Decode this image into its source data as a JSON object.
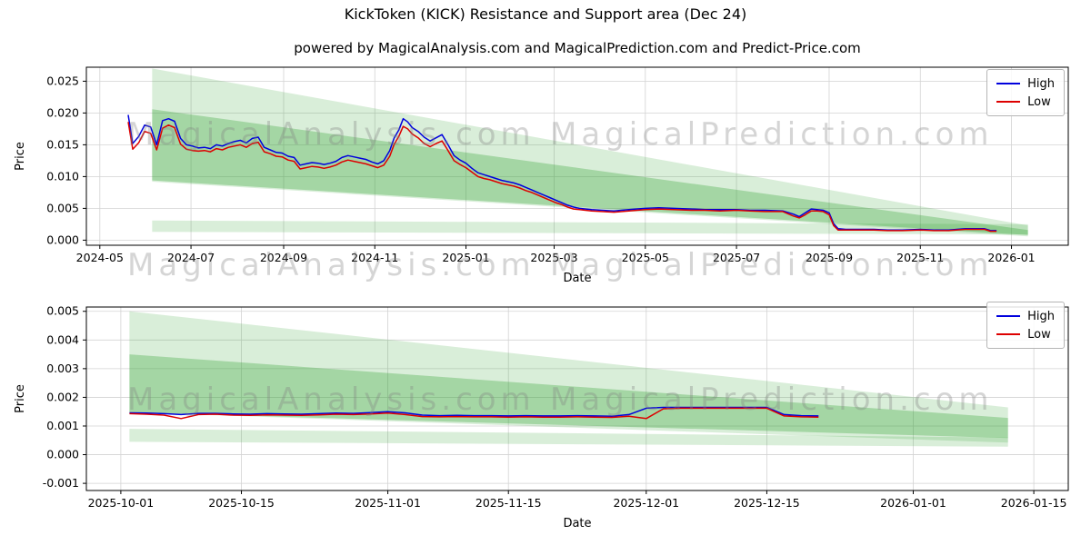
{
  "page": {
    "title": "KickToken (KICK) Resistance and Support area (Dec 24)",
    "subtitle": "powered by MagicalAnalysis.com and MagicalPrediction.com and Predict-Price.com"
  },
  "legend": {
    "high": "High",
    "low": "Low"
  },
  "watermarks": {
    "left": "MagicalAnalysis.com",
    "right": "MagicalPrediction.com"
  },
  "colors": {
    "high": "#0000dd",
    "low": "#dd0000",
    "band_green": "#2ca02c",
    "grid": "#d3d3d3",
    "axis": "#000000",
    "watermark": "#808080"
  },
  "chart_data": [
    {
      "type": "line",
      "title": "",
      "xlabel": "Date",
      "ylabel": "Price",
      "x_range": [
        "2024-04-22",
        "2026-02-08"
      ],
      "ylim": [
        -0.0008,
        0.0272
      ],
      "x_ticks": [
        {
          "date": "2024-05-01",
          "label": "2024-05"
        },
        {
          "date": "2024-07-01",
          "label": "2024-07"
        },
        {
          "date": "2024-09-01",
          "label": "2024-09"
        },
        {
          "date": "2024-11-01",
          "label": "2024-11"
        },
        {
          "date": "2025-01-01",
          "label": "2025-01"
        },
        {
          "date": "2025-03-01",
          "label": "2025-03"
        },
        {
          "date": "2025-05-01",
          "label": "2025-05"
        },
        {
          "date": "2025-07-01",
          "label": "2025-07"
        },
        {
          "date": "2025-09-01",
          "label": "2025-09"
        },
        {
          "date": "2025-11-01",
          "label": "2025-11"
        },
        {
          "date": "2026-01-01",
          "label": "2026-01"
        }
      ],
      "y_ticks": [
        0.0,
        0.005,
        0.01,
        0.015,
        0.02,
        0.025
      ],
      "series": [
        "High",
        "Low"
      ],
      "points": [
        [
          "2024-05-20",
          0.0197,
          0.0186
        ],
        [
          "2024-05-23",
          0.0152,
          0.0143
        ],
        [
          "2024-05-27",
          0.0163,
          0.0153
        ],
        [
          "2024-05-31",
          0.0181,
          0.0171
        ],
        [
          "2024-06-04",
          0.0178,
          0.0168
        ],
        [
          "2024-06-08",
          0.015,
          0.0142
        ],
        [
          "2024-06-12",
          0.0188,
          0.0176
        ],
        [
          "2024-06-16",
          0.0191,
          0.0181
        ],
        [
          "2024-06-20",
          0.0187,
          0.0177
        ],
        [
          "2024-06-24",
          0.016,
          0.0151
        ],
        [
          "2024-06-28",
          0.015,
          0.0143
        ],
        [
          "2024-07-02",
          0.0148,
          0.0141
        ],
        [
          "2024-07-06",
          0.0145,
          0.014
        ],
        [
          "2024-07-10",
          0.0146,
          0.0141
        ],
        [
          "2024-07-14",
          0.0144,
          0.0139
        ],
        [
          "2024-07-18",
          0.015,
          0.0144
        ],
        [
          "2024-07-22",
          0.0148,
          0.0142
        ],
        [
          "2024-07-26",
          0.0152,
          0.0146
        ],
        [
          "2024-07-30",
          0.0155,
          0.0148
        ],
        [
          "2024-08-03",
          0.0157,
          0.015
        ],
        [
          "2024-08-07",
          0.0153,
          0.0146
        ],
        [
          "2024-08-11",
          0.016,
          0.0152
        ],
        [
          "2024-08-15",
          0.0162,
          0.0154
        ],
        [
          "2024-08-19",
          0.0146,
          0.0139
        ],
        [
          "2024-08-23",
          0.0142,
          0.0136
        ],
        [
          "2024-08-27",
          0.0138,
          0.0132
        ],
        [
          "2024-08-31",
          0.0137,
          0.0131
        ],
        [
          "2024-09-04",
          0.0132,
          0.0126
        ],
        [
          "2024-09-08",
          0.013,
          0.0124
        ],
        [
          "2024-09-12",
          0.0118,
          0.0112
        ],
        [
          "2024-09-16",
          0.012,
          0.0114
        ],
        [
          "2024-09-20",
          0.0122,
          0.0116
        ],
        [
          "2024-09-24",
          0.0121,
          0.0115
        ],
        [
          "2024-09-28",
          0.0119,
          0.0113
        ],
        [
          "2024-10-02",
          0.0121,
          0.0115
        ],
        [
          "2024-10-06",
          0.0124,
          0.0118
        ],
        [
          "2024-10-10",
          0.013,
          0.0123
        ],
        [
          "2024-10-14",
          0.0133,
          0.0126
        ],
        [
          "2024-10-18",
          0.0131,
          0.0124
        ],
        [
          "2024-10-22",
          0.0129,
          0.0122
        ],
        [
          "2024-10-26",
          0.0127,
          0.012
        ],
        [
          "2024-10-30",
          0.0123,
          0.0117
        ],
        [
          "2024-11-03",
          0.012,
          0.0114
        ],
        [
          "2024-11-07",
          0.0125,
          0.0118
        ],
        [
          "2024-11-11",
          0.0141,
          0.0132
        ],
        [
          "2024-11-14",
          0.0161,
          0.0151
        ],
        [
          "2024-11-17",
          0.0173,
          0.0163
        ],
        [
          "2024-11-20",
          0.0191,
          0.0179
        ],
        [
          "2024-11-23",
          0.0186,
          0.0175
        ],
        [
          "2024-11-26",
          0.0177,
          0.0167
        ],
        [
          "2024-11-30",
          0.0171,
          0.0161
        ],
        [
          "2024-12-04",
          0.0162,
          0.0152
        ],
        [
          "2024-12-08",
          0.0156,
          0.0147
        ],
        [
          "2024-12-12",
          0.0161,
          0.0152
        ],
        [
          "2024-12-16",
          0.0166,
          0.0156
        ],
        [
          "2024-12-20",
          0.015,
          0.0141
        ],
        [
          "2024-12-24",
          0.0133,
          0.0125
        ],
        [
          "2024-12-28",
          0.0126,
          0.0119
        ],
        [
          "2025-01-01",
          0.0121,
          0.0114
        ],
        [
          "2025-01-05",
          0.0113,
          0.0107
        ],
        [
          "2025-01-09",
          0.0106,
          0.01
        ],
        [
          "2025-01-13",
          0.0103,
          0.0097
        ],
        [
          "2025-01-17",
          0.01,
          0.0095
        ],
        [
          "2025-01-21",
          0.0097,
          0.0092
        ],
        [
          "2025-01-25",
          0.0094,
          0.0089
        ],
        [
          "2025-01-29",
          0.0092,
          0.0087
        ],
        [
          "2025-02-02",
          0.009,
          0.0085
        ],
        [
          "2025-02-06",
          0.0087,
          0.0082
        ],
        [
          "2025-02-10",
          0.0083,
          0.0078
        ],
        [
          "2025-02-14",
          0.0079,
          0.0075
        ],
        [
          "2025-02-18",
          0.0075,
          0.0071
        ],
        [
          "2025-02-22",
          0.0071,
          0.0067
        ],
        [
          "2025-02-26",
          0.0067,
          0.0063
        ],
        [
          "2025-03-02",
          0.0063,
          0.0059
        ],
        [
          "2025-03-06",
          0.0059,
          0.0056
        ],
        [
          "2025-03-10",
          0.0055,
          0.0052
        ],
        [
          "2025-03-14",
          0.0052,
          0.0049
        ],
        [
          "2025-03-18",
          0.005,
          0.0048
        ],
        [
          "2025-03-22",
          0.0049,
          0.0047
        ],
        [
          "2025-03-26",
          0.0048,
          0.0046
        ],
        [
          "2025-04-02",
          0.0047,
          0.0045
        ],
        [
          "2025-04-10",
          0.0046,
          0.0044
        ],
        [
          "2025-04-20",
          0.0048,
          0.0046
        ],
        [
          "2025-05-01",
          0.005,
          0.0048
        ],
        [
          "2025-05-10",
          0.0051,
          0.0049
        ],
        [
          "2025-05-20",
          0.005,
          0.0048
        ],
        [
          "2025-06-01",
          0.0049,
          0.0047
        ],
        [
          "2025-06-10",
          0.0048,
          0.0047
        ],
        [
          "2025-06-20",
          0.0048,
          0.0046
        ],
        [
          "2025-07-01",
          0.0048,
          0.0047
        ],
        [
          "2025-07-10",
          0.0047,
          0.0046
        ],
        [
          "2025-07-20",
          0.0047,
          0.0045
        ],
        [
          "2025-08-01",
          0.0046,
          0.0045
        ],
        [
          "2025-08-08",
          0.0041,
          0.0038
        ],
        [
          "2025-08-12",
          0.0037,
          0.0035
        ],
        [
          "2025-08-16",
          0.0043,
          0.004
        ],
        [
          "2025-08-20",
          0.0049,
          0.0046
        ],
        [
          "2025-08-24",
          0.0048,
          0.0046
        ],
        [
          "2025-08-28",
          0.0047,
          0.0045
        ],
        [
          "2025-09-01",
          0.0043,
          0.004
        ],
        [
          "2025-09-04",
          0.0026,
          0.0023
        ],
        [
          "2025-09-07",
          0.0018,
          0.0016
        ],
        [
          "2025-09-12",
          0.0017,
          0.0016
        ],
        [
          "2025-09-20",
          0.0017,
          0.0016
        ],
        [
          "2025-10-01",
          0.0017,
          0.0016
        ],
        [
          "2025-10-10",
          0.0016,
          0.0015
        ],
        [
          "2025-10-20",
          0.0016,
          0.0015
        ],
        [
          "2025-11-01",
          0.0017,
          0.0016
        ],
        [
          "2025-11-10",
          0.0016,
          0.0015
        ],
        [
          "2025-11-20",
          0.0016,
          0.0015
        ],
        [
          "2025-12-01",
          0.0018,
          0.0017
        ],
        [
          "2025-12-08",
          0.0018,
          0.0017
        ],
        [
          "2025-12-14",
          0.0018,
          0.0017
        ],
        [
          "2025-12-18",
          0.0015,
          0.0014
        ],
        [
          "2025-12-22",
          0.0015,
          0.0014
        ]
      ],
      "bands": [
        {
          "x0": "2024-06-05",
          "x1": "2026-01-12",
          "top0": 0.027,
          "top1": 0.0023,
          "bot0": 0.0092,
          "bot1": 0.0006,
          "opacity": 0.18
        },
        {
          "x0": "2024-06-05",
          "x1": "2026-01-12",
          "top0": 0.0206,
          "top1": 0.0016,
          "bot0": 0.0094,
          "bot1": 0.0008,
          "opacity": 0.3
        },
        {
          "x0": "2024-06-05",
          "x1": "2026-01-12",
          "top0": 0.0031,
          "top1": 0.0025,
          "bot0": 0.0013,
          "bot1": 0.0009,
          "opacity": 0.18
        }
      ]
    },
    {
      "type": "line",
      "title": "",
      "xlabel": "Date",
      "ylabel": "Price",
      "x_range": [
        "2025-09-27",
        "2026-01-19"
      ],
      "ylim": [
        -0.00125,
        0.00515
      ],
      "x_ticks": [
        {
          "date": "2025-10-01",
          "label": "2025-10-01"
        },
        {
          "date": "2025-10-15",
          "label": "2025-10-15"
        },
        {
          "date": "2025-11-01",
          "label": "2025-11-01"
        },
        {
          "date": "2025-11-15",
          "label": "2025-11-15"
        },
        {
          "date": "2025-12-01",
          "label": "2025-12-01"
        },
        {
          "date": "2025-12-15",
          "label": "2025-12-15"
        },
        {
          "date": "2026-01-01",
          "label": "2026-01-01"
        },
        {
          "date": "2026-01-15",
          "label": "2026-01-15"
        }
      ],
      "y_ticks": [
        -0.001,
        0.0,
        0.001,
        0.002,
        0.003,
        0.004,
        0.005
      ],
      "series": [
        "High",
        "Low"
      ],
      "points": [
        [
          "2025-10-02",
          0.00146,
          0.00143
        ],
        [
          "2025-10-04",
          0.00145,
          0.00141
        ],
        [
          "2025-10-06",
          0.00143,
          0.00138
        ],
        [
          "2025-10-08",
          0.0014,
          0.00126
        ],
        [
          "2025-10-10",
          0.00144,
          0.0014
        ],
        [
          "2025-10-12",
          0.00144,
          0.00141
        ],
        [
          "2025-10-14",
          0.00142,
          0.00138
        ],
        [
          "2025-10-16",
          0.00141,
          0.00137
        ],
        [
          "2025-10-18",
          0.00143,
          0.00139
        ],
        [
          "2025-10-20",
          0.00142,
          0.00138
        ],
        [
          "2025-10-22",
          0.00141,
          0.00137
        ],
        [
          "2025-10-24",
          0.00143,
          0.00139
        ],
        [
          "2025-10-26",
          0.00145,
          0.00141
        ],
        [
          "2025-10-28",
          0.00144,
          0.0014
        ],
        [
          "2025-10-30",
          0.00147,
          0.00142
        ],
        [
          "2025-11-01",
          0.0015,
          0.00145
        ],
        [
          "2025-11-03",
          0.00146,
          0.0014
        ],
        [
          "2025-11-05",
          0.00138,
          0.00133
        ],
        [
          "2025-11-07",
          0.00136,
          0.00132
        ],
        [
          "2025-11-09",
          0.00137,
          0.00133
        ],
        [
          "2025-11-11",
          0.00136,
          0.00132
        ],
        [
          "2025-11-13",
          0.00136,
          0.00132
        ],
        [
          "2025-11-15",
          0.00135,
          0.00131
        ],
        [
          "2025-11-17",
          0.00136,
          0.00132
        ],
        [
          "2025-11-19",
          0.00135,
          0.00131
        ],
        [
          "2025-11-21",
          0.00135,
          0.00131
        ],
        [
          "2025-11-23",
          0.00136,
          0.00132
        ],
        [
          "2025-11-25",
          0.00135,
          0.00131
        ],
        [
          "2025-11-27",
          0.00134,
          0.0013
        ],
        [
          "2025-11-29",
          0.0014,
          0.00134
        ],
        [
          "2025-12-01",
          0.00162,
          0.00126
        ],
        [
          "2025-12-03",
          0.00165,
          0.0016
        ],
        [
          "2025-12-05",
          0.00165,
          0.00162
        ],
        [
          "2025-12-07",
          0.00165,
          0.00162
        ],
        [
          "2025-12-09",
          0.00165,
          0.00162
        ],
        [
          "2025-12-11",
          0.00165,
          0.00162
        ],
        [
          "2025-12-13",
          0.00165,
          0.00162
        ],
        [
          "2025-12-15",
          0.00165,
          0.00162
        ],
        [
          "2025-12-17",
          0.0014,
          0.00135
        ],
        [
          "2025-12-19",
          0.00136,
          0.00132
        ],
        [
          "2025-12-21",
          0.00135,
          0.00131
        ]
      ],
      "bands": [
        {
          "x0": "2025-10-02",
          "x1": "2026-01-12",
          "top0": 0.005,
          "top1": 0.00165,
          "bot0": 0.00148,
          "bot1": 0.00042,
          "opacity": 0.18
        },
        {
          "x0": "2025-10-02",
          "x1": "2026-01-12",
          "top0": 0.0035,
          "top1": 0.00128,
          "bot0": 0.00148,
          "bot1": 0.00058,
          "opacity": 0.3
        },
        {
          "x0": "2025-10-02",
          "x1": "2026-01-12",
          "top0": 0.0009,
          "top1": 0.0006,
          "bot0": 0.00045,
          "bot1": 0.00028,
          "opacity": 0.18
        }
      ]
    }
  ]
}
